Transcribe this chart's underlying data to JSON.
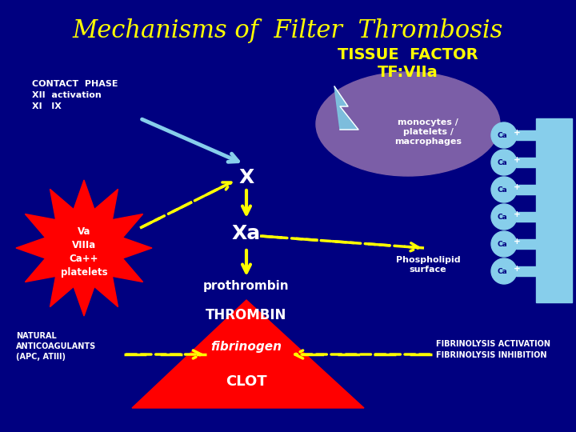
{
  "background_color": "#000080",
  "title": "Mechanisms of  Filter  Thrombosis",
  "title_color": "#FFFF00",
  "title_fontsize": 22,
  "tissue_factor_text": "TISSUE  FACTOR\nTF:VIIa",
  "tissue_factor_color": "#FFFF00",
  "tissue_ellipse_color": "#7B5EA7",
  "monocytes_text": "monocytes /\nplatelets /\nmacrophages",
  "monocytes_color": "#FFFFFF",
  "contact_phase_text": "CONTACT  PHASE\nXII  activation\nXI   IX",
  "contact_phase_color": "#FFFFFF",
  "X_label": "X",
  "Xa_label": "Xa",
  "prothrombin_label": "prothrombin",
  "thrombin_label": "THROMBIN",
  "fibrinogen_label": "fibrinogen",
  "clot_label": "CLOT",
  "yellow": "#FFFF00",
  "red": "#FF0000",
  "white": "#FFFFFF",
  "light_blue": "#87CEEB",
  "cyan": "#7EC8E3",
  "va_text": "Va\nVIIIa\nCa++\nplatelets",
  "phospholipid_text": "Phospholipid\nsurface",
  "natural_anticoag_text": "NATURAL\nANTICOAGULANTS\n(APC, ATIII)",
  "fibrinolysis_text": "FIBRINOLYSIS ACTIVATION\nFIBRINOLYSIS INHIBITION"
}
